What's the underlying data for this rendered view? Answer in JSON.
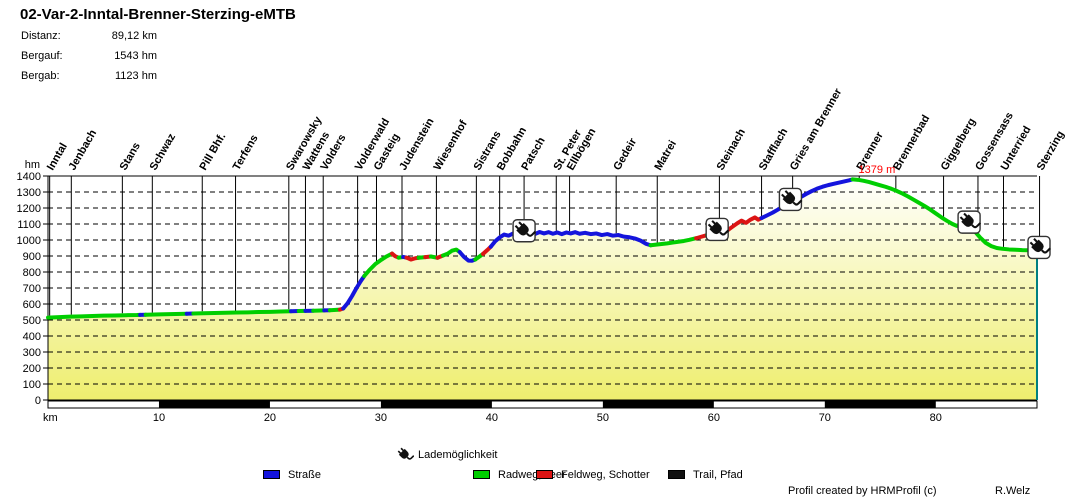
{
  "header": {
    "title": "02-Var-2-Inntal-Brenner-Sterzing-eMTB",
    "stats": [
      {
        "label": "Distanz:",
        "value": "89,12 km"
      },
      {
        "label": "Bergauf:",
        "value": "1543 hm"
      },
      {
        "label": "Bergab:",
        "value": "1123 hm"
      }
    ]
  },
  "colors": {
    "road": "#1414DC",
    "bike": "#00CE00",
    "gravel": "#DC1414",
    "trail": "#111111",
    "fill_top": "#FFFFFF",
    "fill_bottom": "#EEEE6E",
    "annotation": "#FF0000",
    "end_marker": "#008080",
    "grid": "#000000"
  },
  "chart_data": {
    "type": "area",
    "title": "02-Var-2-Inntal-Brenner-Sterzing-eMTB",
    "xlabel": "km",
    "ylabel": "hm",
    "xlim": [
      0,
      89.12
    ],
    "ylim": [
      0,
      1400
    ],
    "x_ticks": [
      10,
      20,
      30,
      40,
      50,
      60,
      70,
      80
    ],
    "y_tick_step": 100,
    "grid": "dashed horizontal every 100 hm",
    "scale_bar_black_segments": [
      [
        10,
        20
      ],
      [
        30,
        40
      ],
      [
        50,
        60
      ],
      [
        70,
        80
      ]
    ],
    "max_annotation": {
      "text": "1379 m",
      "km": 72.5,
      "elevation": 1379
    },
    "charging_label": "Lademöglichkeit",
    "charging_km": [
      42.9,
      60.3,
      66.9,
      83.0,
      89.3
    ],
    "places": [
      {
        "name": "Inntal",
        "km": 0.15
      },
      {
        "name": "Jenbach",
        "km": 2.1
      },
      {
        "name": "Stans",
        "km": 6.7
      },
      {
        "name": "Schwaz",
        "km": 9.4
      },
      {
        "name": "Pill Bhf.",
        "km": 13.9
      },
      {
        "name": "Terfens",
        "km": 16.9
      },
      {
        "name": "Swarowsky",
        "km": 21.7
      },
      {
        "name": "Wattens",
        "km": 23.2
      },
      {
        "name": "Volders",
        "km": 24.8
      },
      {
        "name": "Volderwald",
        "km": 27.9
      },
      {
        "name": "Gasteig",
        "km": 29.6
      },
      {
        "name": "Judenstein",
        "km": 31.9
      },
      {
        "name": "Wiesenhof",
        "km": 35.0
      },
      {
        "name": "Sistrans",
        "km": 38.6
      },
      {
        "name": "Bobbahn",
        "km": 40.7
      },
      {
        "name": "Patsch",
        "km": 42.9
      },
      {
        "name": "St. Peter",
        "km": 45.8
      },
      {
        "name": "Ellbögen",
        "km": 47.0
      },
      {
        "name": "Gedeir",
        "km": 51.2
      },
      {
        "name": "Matrei",
        "km": 54.9
      },
      {
        "name": "Steinach",
        "km": 60.5
      },
      {
        "name": "Stafflach",
        "km": 64.3
      },
      {
        "name": "Gries am Brenner",
        "km": 67.1
      },
      {
        "name": "Brenner",
        "km": 73.1
      },
      {
        "name": "Brennerbad",
        "km": 76.4
      },
      {
        "name": "Giggelberg",
        "km": 80.7
      },
      {
        "name": "Gossensass",
        "km": 83.8
      },
      {
        "name": "Unterried",
        "km": 86.1
      },
      {
        "name": "Sterzing",
        "km": 89.35
      }
    ],
    "surface_legend": [
      {
        "key": "road",
        "label": "Straße"
      },
      {
        "key": "bike",
        "label": "Radweg, Teer"
      },
      {
        "key": "gravel",
        "label": "Feldweg, Schotter"
      },
      {
        "key": "trail",
        "label": "Trail, Pfad"
      }
    ],
    "profile": [
      [
        0.0,
        515,
        "bike"
      ],
      [
        1.0,
        518,
        "bike"
      ],
      [
        2.0,
        521,
        "bike"
      ],
      [
        3.0,
        523,
        "bike"
      ],
      [
        4.0,
        525,
        "bike"
      ],
      [
        5.0,
        527,
        "bike"
      ],
      [
        6.0,
        528,
        "bike"
      ],
      [
        7.0,
        530,
        "bike"
      ],
      [
        8.0,
        531,
        "bike"
      ],
      [
        8.3,
        532,
        "road"
      ],
      [
        8.8,
        533,
        "bike"
      ],
      [
        10.0,
        535,
        "bike"
      ],
      [
        11.0,
        537,
        "bike"
      ],
      [
        12.0,
        538,
        "bike"
      ],
      [
        12.5,
        539,
        "road"
      ],
      [
        13.1,
        541,
        "bike"
      ],
      [
        14.0,
        542,
        "bike"
      ],
      [
        15.0,
        544,
        "bike"
      ],
      [
        16.0,
        545,
        "bike"
      ],
      [
        17.0,
        547,
        "bike"
      ],
      [
        18.0,
        548,
        "bike"
      ],
      [
        19.0,
        550,
        "bike"
      ],
      [
        20.0,
        551,
        "bike"
      ],
      [
        21.0,
        553,
        "bike"
      ],
      [
        21.9,
        555,
        "road"
      ],
      [
        22.6,
        556,
        "bike"
      ],
      [
        23.2,
        557,
        "road"
      ],
      [
        23.9,
        558,
        "bike"
      ],
      [
        24.9,
        560,
        "road"
      ],
      [
        25.4,
        561,
        "bike"
      ],
      [
        26.3,
        565,
        "gravel"
      ],
      [
        26.6,
        572,
        "road"
      ],
      [
        27.0,
        605,
        "road"
      ],
      [
        27.4,
        650,
        "road"
      ],
      [
        27.8,
        700,
        "road"
      ],
      [
        28.2,
        745,
        "road"
      ],
      [
        28.5,
        775,
        "bike"
      ],
      [
        29.0,
        815,
        "bike"
      ],
      [
        29.5,
        850,
        "bike"
      ],
      [
        30.0,
        875,
        "bike"
      ],
      [
        30.5,
        897,
        "bike"
      ],
      [
        31.0,
        915,
        "gravel"
      ],
      [
        31.3,
        898,
        "gravel"
      ],
      [
        31.6,
        890,
        "bike"
      ],
      [
        32.0,
        894,
        "road"
      ],
      [
        32.3,
        890,
        "gravel"
      ],
      [
        32.7,
        878,
        "gravel"
      ],
      [
        33.1,
        886,
        "gravel"
      ],
      [
        33.4,
        889,
        "bike"
      ],
      [
        34.0,
        893,
        "gravel"
      ],
      [
        34.5,
        897,
        "bike"
      ],
      [
        35.1,
        889,
        "gravel"
      ],
      [
        35.6,
        903,
        "bike"
      ],
      [
        36.0,
        914,
        "bike"
      ],
      [
        36.4,
        933,
        "bike"
      ],
      [
        36.8,
        940,
        "bike"
      ],
      [
        37.1,
        925,
        "road"
      ],
      [
        37.5,
        893,
        "road"
      ],
      [
        37.9,
        871,
        "road"
      ],
      [
        38.2,
        870,
        "road"
      ],
      [
        38.5,
        878,
        "bike"
      ],
      [
        38.9,
        898,
        "bike"
      ],
      [
        39.2,
        913,
        "gravel"
      ],
      [
        39.6,
        938,
        "gravel"
      ],
      [
        39.9,
        958,
        "road"
      ],
      [
        40.3,
        992,
        "road"
      ],
      [
        40.7,
        1016,
        "road"
      ],
      [
        41.1,
        1034,
        "road"
      ],
      [
        41.5,
        1027,
        "road"
      ],
      [
        41.9,
        1040,
        "road"
      ],
      [
        42.3,
        1032,
        "road"
      ],
      [
        42.7,
        1043,
        "road"
      ],
      [
        43.1,
        1035,
        "road"
      ],
      [
        43.5,
        1045,
        "road"
      ],
      [
        43.9,
        1038,
        "road"
      ],
      [
        44.3,
        1050,
        "road"
      ],
      [
        44.7,
        1041,
        "road"
      ],
      [
        45.1,
        1049,
        "road"
      ],
      [
        45.5,
        1039,
        "road"
      ],
      [
        45.9,
        1047,
        "road"
      ],
      [
        46.3,
        1037,
        "road"
      ],
      [
        46.7,
        1047,
        "road"
      ],
      [
        47.1,
        1041,
        "road"
      ],
      [
        47.5,
        1049,
        "road"
      ],
      [
        47.9,
        1039,
        "road"
      ],
      [
        48.4,
        1045,
        "road"
      ],
      [
        48.9,
        1037,
        "road"
      ],
      [
        49.4,
        1041,
        "road"
      ],
      [
        49.9,
        1031,
        "road"
      ],
      [
        50.4,
        1037,
        "road"
      ],
      [
        50.9,
        1027,
        "road"
      ],
      [
        51.4,
        1031,
        "road"
      ],
      [
        51.9,
        1021,
        "road"
      ],
      [
        52.4,
        1017,
        "road"
      ],
      [
        52.9,
        1009,
        "road"
      ],
      [
        53.4,
        996,
        "road"
      ],
      [
        53.9,
        976,
        "road"
      ],
      [
        54.3,
        967,
        "bike"
      ],
      [
        54.8,
        971,
        "bike"
      ],
      [
        55.3,
        975,
        "bike"
      ],
      [
        55.8,
        979,
        "bike"
      ],
      [
        56.3,
        984,
        "bike"
      ],
      [
        56.8,
        989,
        "bike"
      ],
      [
        57.3,
        994,
        "bike"
      ],
      [
        57.8,
        1001,
        "bike"
      ],
      [
        58.4,
        1011,
        "gravel"
      ],
      [
        58.9,
        1021,
        "gravel"
      ],
      [
        59.4,
        1031,
        "bike"
      ],
      [
        59.9,
        1041,
        "bike"
      ],
      [
        60.4,
        1049,
        "bike"
      ],
      [
        60.9,
        1055,
        "bike"
      ],
      [
        61.3,
        1064,
        "gravel"
      ],
      [
        61.7,
        1084,
        "gravel"
      ],
      [
        62.1,
        1104,
        "gravel"
      ],
      [
        62.5,
        1121,
        "gravel"
      ],
      [
        62.9,
        1107,
        "gravel"
      ],
      [
        63.3,
        1127,
        "gravel"
      ],
      [
        63.7,
        1141,
        "gravel"
      ],
      [
        64.0,
        1127,
        "gravel"
      ],
      [
        64.3,
        1137,
        "road"
      ],
      [
        64.8,
        1154,
        "road"
      ],
      [
        65.3,
        1171,
        "road"
      ],
      [
        65.8,
        1191,
        "road"
      ],
      [
        66.3,
        1211,
        "road"
      ],
      [
        66.8,
        1231,
        "road"
      ],
      [
        67.3,
        1249,
        "road"
      ],
      [
        67.8,
        1267,
        "road"
      ],
      [
        68.3,
        1287,
        "road"
      ],
      [
        68.8,
        1305,
        "road"
      ],
      [
        69.3,
        1321,
        "road"
      ],
      [
        69.8,
        1333,
        "road"
      ],
      [
        70.3,
        1343,
        "road"
      ],
      [
        70.8,
        1351,
        "road"
      ],
      [
        71.3,
        1359,
        "road"
      ],
      [
        71.8,
        1367,
        "road"
      ],
      [
        72.2,
        1373,
        "road"
      ],
      [
        72.5,
        1379,
        "bike"
      ],
      [
        73.0,
        1376,
        "bike"
      ],
      [
        73.5,
        1370,
        "bike"
      ],
      [
        74.0,
        1362,
        "bike"
      ],
      [
        74.5,
        1352,
        "bike"
      ],
      [
        75.0,
        1342,
        "bike"
      ],
      [
        75.5,
        1332,
        "bike"
      ],
      [
        76.0,
        1320,
        "bike"
      ],
      [
        76.5,
        1306,
        "bike"
      ],
      [
        77.0,
        1290,
        "bike"
      ],
      [
        77.5,
        1272,
        "bike"
      ],
      [
        78.0,
        1252,
        "bike"
      ],
      [
        78.5,
        1232,
        "bike"
      ],
      [
        79.0,
        1212,
        "bike"
      ],
      [
        79.5,
        1190,
        "bike"
      ],
      [
        80.0,
        1166,
        "bike"
      ],
      [
        80.5,
        1142,
        "bike"
      ],
      [
        81.0,
        1120,
        "bike"
      ],
      [
        81.5,
        1100,
        "bike"
      ],
      [
        81.9,
        1088,
        "bike"
      ],
      [
        82.3,
        1102,
        "bike"
      ],
      [
        82.7,
        1108,
        "bike"
      ],
      [
        83.1,
        1088,
        "bike"
      ],
      [
        83.5,
        1055,
        "bike"
      ],
      [
        84.0,
        1015,
        "bike"
      ],
      [
        84.5,
        982,
        "bike"
      ],
      [
        85.0,
        962,
        "bike"
      ],
      [
        85.5,
        950,
        "bike"
      ],
      [
        86.0,
        945,
        "bike"
      ],
      [
        86.6,
        941,
        "bike"
      ],
      [
        87.2,
        939,
        "bike"
      ],
      [
        87.8,
        937,
        "bike"
      ],
      [
        88.4,
        936,
        "bike"
      ],
      [
        89.12,
        935,
        "bike"
      ]
    ]
  },
  "legend": {
    "charging_label": "Lademöglichkeit",
    "items": [
      {
        "label": "Straße"
      },
      {
        "label": "Radweg, Teer"
      },
      {
        "label": "Feldweg, Schotter"
      },
      {
        "label": "Trail, Pfad"
      }
    ]
  },
  "footer": {
    "credit": "Profil created by HRMProfil (c)",
    "author": "R.Welz"
  }
}
